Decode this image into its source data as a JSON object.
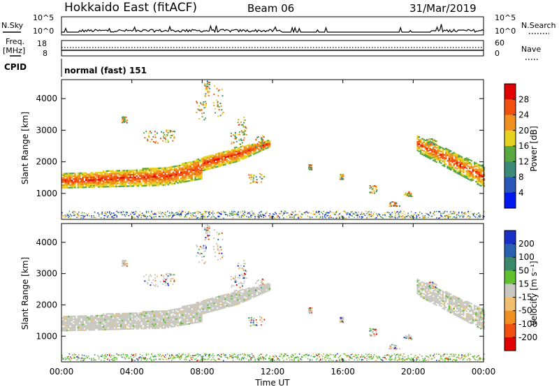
{
  "chart_data": {
    "type": "heatmap",
    "title": "Hokkaido East (fitACF)",
    "beam": "Beam 06",
    "date": "31/Mar/2019",
    "xlabel": "Time UT",
    "ylabel": "Slant Range [km]",
    "x_ticks": [
      "00:00",
      "04:00",
      "08:00",
      "12:00",
      "16:00",
      "20:00",
      "00:00"
    ],
    "xlim_hours": [
      0,
      24
    ],
    "y_ticks": [
      1000,
      2000,
      3000,
      4000
    ],
    "ylim_km": [
      180,
      4600
    ],
    "noise": {
      "left_label": "N.Sky",
      "right_label": "N.Search",
      "left_ticks": [
        "10^5",
        "10^0"
      ],
      "right_ticks": [
        "10^5",
        "10^0"
      ]
    },
    "frequency": {
      "label": "Freq.",
      "unit": "[MHz]",
      "ticks": [
        "18",
        "8"
      ]
    },
    "nave": {
      "label": "Nave",
      "ticks": [
        "60",
        "0"
      ]
    },
    "cpid": {
      "label": "CPID",
      "program": "normal (fast) 151"
    },
    "power": {
      "label": "Power [dB]",
      "ticks": [
        "4",
        "8",
        "12",
        "16",
        "20",
        "24",
        "28"
      ],
      "colors": [
        "#0018f0",
        "#2a58b8",
        "#3a8a78",
        "#5aa840",
        "#e6d020",
        "#f09020",
        "#f05010",
        "#e00000"
      ]
    },
    "velocity": {
      "label": "Velocity [m s⁻¹]",
      "ticks": [
        "200",
        "100",
        "50",
        "15",
        "-15",
        "-50",
        "-100",
        "-200"
      ],
      "colors": [
        "#1830c8",
        "#2a60b0",
        "#3a8a6a",
        "#60c030",
        "#c8c8c0",
        "#f0c070",
        "#f09020",
        "#f05010",
        "#e00000"
      ]
    },
    "series": [
      {
        "region": "morning-to-noon band",
        "time_start": "00:00",
        "time_end": "11:45",
        "range_km": [
          1100,
          2600
        ],
        "power_db": 28,
        "velocity_ms": 0
      },
      {
        "region": "evening band",
        "time_start": "20:15",
        "time_end": "24:00",
        "range_km": [
          1200,
          2700
        ],
        "power_db": 24,
        "velocity_ms": 0
      },
      {
        "region": "near-range clutter",
        "time_start": "00:00",
        "time_end": "24:00",
        "range_km": [
          180,
          400
        ],
        "power_db": 10,
        "velocity_ms": 20
      }
    ]
  }
}
